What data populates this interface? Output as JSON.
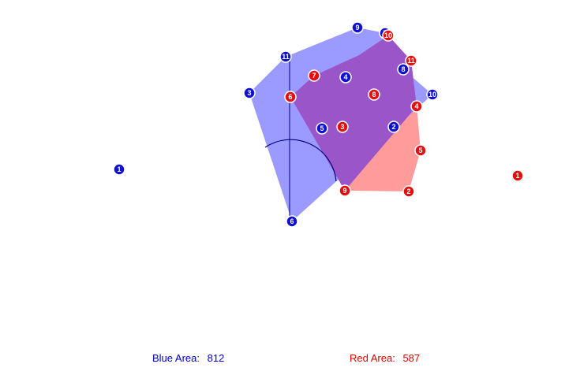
{
  "colors": {
    "blue": "#1010d0",
    "red": "#e01010",
    "blue_fill": "#9b9bff",
    "red_fill": "#ff9b9b",
    "overlap_fill": "#9a55c8",
    "arc": "#000080"
  },
  "scores": {
    "blue_label": "Blue Area:",
    "blue_value": "812",
    "red_label": "Red Area:",
    "red_value": "587"
  },
  "blue_points": [
    {
      "label": "1"
    },
    {
      "label": "2"
    },
    {
      "label": "3"
    },
    {
      "label": "4"
    },
    {
      "label": "5"
    },
    {
      "label": "6"
    },
    {
      "label": "7"
    },
    {
      "label": "8"
    },
    {
      "label": "9"
    },
    {
      "label": "10"
    },
    {
      "label": "11"
    }
  ],
  "red_points": [
    {
      "label": "1"
    },
    {
      "label": "2"
    },
    {
      "label": "3"
    },
    {
      "label": "4"
    },
    {
      "label": "5"
    },
    {
      "label": "6"
    },
    {
      "label": "7"
    },
    {
      "label": "8"
    },
    {
      "label": "9"
    },
    {
      "label": "10"
    },
    {
      "label": "11"
    }
  ]
}
